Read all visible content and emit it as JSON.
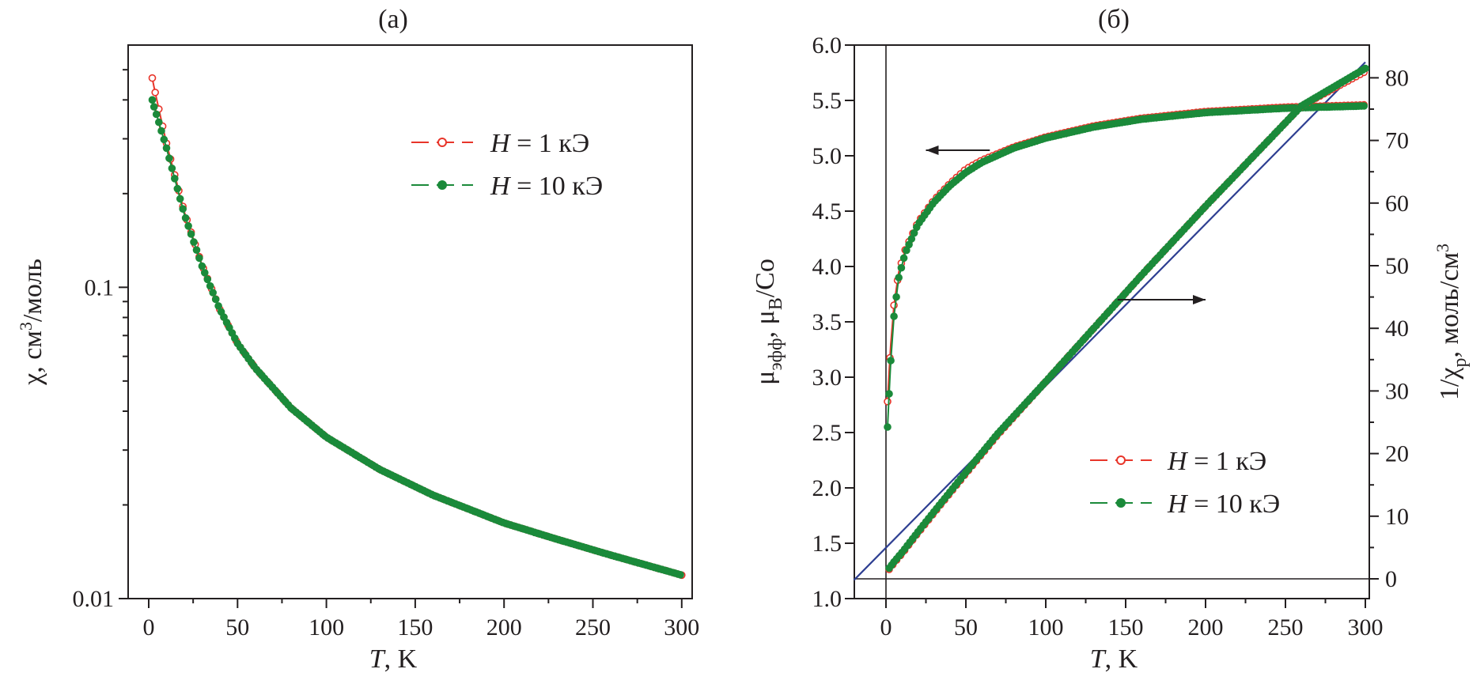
{
  "colors": {
    "red": "#e8352a",
    "green": "#1b8a3a",
    "blue": "#2e3f92",
    "axis": "#231f20"
  },
  "chart_data": [
    {
      "type": "scatter",
      "panel_label": "(а)",
      "xlabel_italic": "T",
      "xlabel_rest": ", K",
      "ylabel_main": "χ, см",
      "ylabel_sup": "3",
      "ylabel_tail": "/моль",
      "yscale": "log",
      "xlim": [
        -10,
        300
      ],
      "ylim": [
        0.01,
        0.6
      ],
      "xticks": [
        0,
        50,
        100,
        150,
        200,
        250,
        300
      ],
      "xtick_labels": [
        "0",
        "50",
        "100",
        "150",
        "200",
        "250",
        "300"
      ],
      "yticks": [
        0.01,
        0.1
      ],
      "ytick_labels": [
        "0.01",
        "0.1"
      ],
      "legend": [
        {
          "italic": "H",
          "text": " = 1  кЭ",
          "marker": "open-circle",
          "color": "red"
        },
        {
          "italic": "H",
          "text": " = 10 кЭ",
          "marker": "filled-circle",
          "color": "green"
        }
      ],
      "legend_position": "top-right",
      "series": [
        {
          "marker": "open-circle",
          "color": "red",
          "x": [
            2,
            3,
            5,
            10,
            20,
            30,
            40,
            50,
            60,
            80,
            100,
            130,
            160,
            200,
            230,
            260,
            300
          ],
          "y": [
            0.47,
            0.44,
            0.39,
            0.29,
            0.175,
            0.118,
            0.085,
            0.066,
            0.055,
            0.041,
            0.033,
            0.026,
            0.0215,
            0.0175,
            0.0155,
            0.0138,
            0.0119
          ]
        },
        {
          "marker": "filled-circle",
          "color": "green",
          "x": [
            2,
            3,
            5,
            10,
            20,
            30,
            40,
            50,
            60,
            80,
            100,
            130,
            160,
            200,
            230,
            260,
            300
          ],
          "y": [
            0.4,
            0.38,
            0.35,
            0.28,
            0.172,
            0.117,
            0.085,
            0.066,
            0.055,
            0.041,
            0.033,
            0.026,
            0.0215,
            0.0175,
            0.0155,
            0.0138,
            0.0119
          ]
        }
      ]
    },
    {
      "type": "scatter",
      "panel_label": "(б)",
      "xlabel_italic": "T",
      "xlabel_rest": ", K",
      "ylabel_left": "μ",
      "ylabel_left_sub": "эфф",
      "ylabel_left_mid": ", μ",
      "ylabel_left_sub2": "B",
      "ylabel_left_tail": "/Co",
      "ylabel_right": "1/χ",
      "ylabel_right_sub": "р",
      "ylabel_right_mid": ", моль/см",
      "ylabel_right_sup": "3",
      "xlim": [
        -20,
        300
      ],
      "ylim": [
        1.0,
        6.0
      ],
      "y2lim": [
        -4,
        83
      ],
      "xticks": [
        0,
        50,
        100,
        150,
        200,
        250,
        300
      ],
      "xtick_labels": [
        "0",
        "50",
        "100",
        "150",
        "200",
        "250",
        "300"
      ],
      "yticks": [
        1.0,
        1.5,
        2.0,
        2.5,
        3.0,
        3.5,
        4.0,
        4.5,
        5.0,
        5.5,
        6.0
      ],
      "ytick_labels": [
        "1.0",
        "1.5",
        "2.0",
        "2.5",
        "3.0",
        "3.5",
        "4.0",
        "4.5",
        "5.0",
        "5.5",
        "6.0"
      ],
      "y2ticks": [
        0,
        10,
        20,
        30,
        40,
        50,
        60,
        70,
        80
      ],
      "y2tick_labels": [
        "0",
        "10",
        "20",
        "30",
        "40",
        "50",
        "60",
        "70",
        "80"
      ],
      "legend": [
        {
          "italic": "H",
          "text": " = 1  кЭ",
          "marker": "open-circle",
          "color": "red"
        },
        {
          "italic": "H",
          "text": " = 10 кЭ",
          "marker": "filled-circle",
          "color": "green"
        }
      ],
      "legend_position": "bottom-right",
      "arrows": [
        {
          "direction": "left",
          "points_to": "left-axis",
          "x1": 65,
          "x2": 25,
          "y": 5.05
        },
        {
          "direction": "right",
          "points_to": "right-axis",
          "x1": 145,
          "x2": 200,
          "y": 3.7
        }
      ],
      "fit_line": {
        "color": "blue",
        "axis": "right",
        "x": [
          -20,
          300
        ],
        "y": [
          -0.2,
          82.5
        ]
      },
      "series": [
        {
          "name_ref": "mu_eff",
          "axis": "left",
          "marker": "open-circle",
          "color": "red",
          "x": [
            1,
            2,
            3,
            5,
            8,
            12,
            20,
            30,
            40,
            50,
            60,
            80,
            100,
            130,
            160,
            200,
            250,
            300
          ],
          "y": [
            2.78,
            3.05,
            3.3,
            3.65,
            3.95,
            4.15,
            4.4,
            4.6,
            4.75,
            4.88,
            4.96,
            5.08,
            5.17,
            5.27,
            5.34,
            5.4,
            5.44,
            5.46
          ]
        },
        {
          "name_ref": "mu_eff",
          "axis": "left",
          "marker": "filled-circle",
          "color": "green",
          "x": [
            1,
            2,
            3,
            5,
            8,
            12,
            20,
            30,
            40,
            50,
            60,
            80,
            100,
            130,
            160,
            200,
            250,
            300
          ],
          "y": [
            2.55,
            2.85,
            3.15,
            3.55,
            3.9,
            4.12,
            4.38,
            4.58,
            4.73,
            4.85,
            4.94,
            5.07,
            5.16,
            5.26,
            5.33,
            5.39,
            5.43,
            5.45
          ]
        },
        {
          "name_ref": "inv_chi",
          "axis": "right",
          "marker": "open-circle",
          "color": "red",
          "x": [
            2,
            5,
            10,
            20,
            30,
            50,
            70,
            100,
            130,
            160,
            200,
            230,
            260,
            300
          ],
          "y": [
            1.5,
            2.5,
            4,
            7.3,
            10.5,
            16.8,
            23,
            31.5,
            40,
            48.5,
            59.5,
            67.5,
            75.5,
            81
          ]
        },
        {
          "name_ref": "inv_chi",
          "axis": "right",
          "marker": "filled-circle",
          "color": "green",
          "x": [
            2,
            5,
            10,
            20,
            30,
            50,
            70,
            100,
            130,
            160,
            200,
            230,
            260,
            300
          ],
          "y": [
            1.7,
            2.7,
            4.2,
            7.5,
            10.7,
            17,
            23.2,
            31.5,
            40,
            48.5,
            59.5,
            67.5,
            75.5,
            81.5
          ]
        }
      ]
    }
  ]
}
